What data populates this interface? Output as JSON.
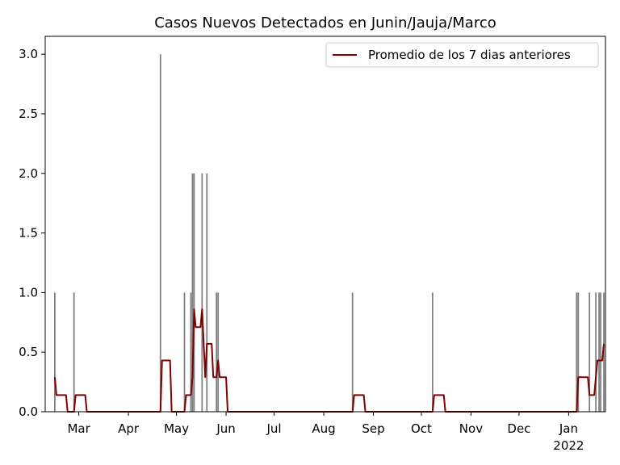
{
  "chart_data": {
    "type": "bar",
    "title": "Casos Nuevos Detectados en Junin/Jauja/Marco",
    "bars": {
      "color": "#808080",
      "x": [
        6,
        18,
        72,
        87,
        91,
        92,
        93,
        98,
        101,
        107,
        108,
        192,
        242,
        332,
        333,
        340,
        344,
        346,
        347,
        349
      ],
      "values": [
        1,
        1,
        3,
        1,
        1,
        2,
        2,
        2,
        2,
        1,
        1,
        1,
        1,
        1,
        1,
        1,
        1,
        1,
        1,
        1
      ]
    },
    "series": [
      {
        "name": "Promedio de los 7 dias anteriores",
        "color": "#800000",
        "x": [
          6,
          7,
          13,
          14,
          18,
          19,
          25,
          26,
          72,
          73,
          78,
          79,
          87,
          88,
          91,
          92,
          93,
          94,
          97,
          98,
          100,
          101,
          104,
          105,
          107,
          108,
          109,
          113,
          114,
          192,
          193,
          199,
          200,
          242,
          243,
          249,
          250,
          332,
          333,
          339,
          340,
          343,
          344,
          345,
          348,
          349
        ],
        "values": [
          0.29,
          0.14,
          0.14,
          0,
          0,
          0.14,
          0.14,
          0,
          0,
          0.43,
          0.43,
          0,
          0,
          0.14,
          0.14,
          0.29,
          0.86,
          0.71,
          0.71,
          0.86,
          0.29,
          0.57,
          0.57,
          0.29,
          0.29,
          0.43,
          0.29,
          0.29,
          0,
          0,
          0.14,
          0.14,
          0,
          0,
          0.14,
          0.14,
          0,
          0,
          0.29,
          0.29,
          0.14,
          0.14,
          0.29,
          0.43,
          0.43,
          0.57
        ]
      }
    ],
    "xlim": [
      0,
      350
    ],
    "xticks": [
      {
        "value": 21,
        "label": "Mar"
      },
      {
        "value": 52,
        "label": "Apr"
      },
      {
        "value": 82,
        "label": "May"
      },
      {
        "value": 113,
        "label": "Jun"
      },
      {
        "value": 143,
        "label": "Jul"
      },
      {
        "value": 174,
        "label": "Aug"
      },
      {
        "value": 205,
        "label": "Sep"
      },
      {
        "value": 235,
        "label": "Oct"
      },
      {
        "value": 266,
        "label": "Nov"
      },
      {
        "value": 296,
        "label": "Dec"
      },
      {
        "value": 327,
        "label": "Jan\n2022"
      }
    ],
    "ylim": [
      0,
      3.15
    ],
    "yticks": [
      {
        "value": 0,
        "label": "0.0"
      },
      {
        "value": 0.5,
        "label": "0.5"
      },
      {
        "value": 1,
        "label": "1.0"
      },
      {
        "value": 1.5,
        "label": "1.5"
      },
      {
        "value": 2,
        "label": "2.0"
      },
      {
        "value": 2.5,
        "label": "2.5"
      },
      {
        "value": 3,
        "label": "3.0"
      }
    ],
    "legend": "upper right"
  }
}
